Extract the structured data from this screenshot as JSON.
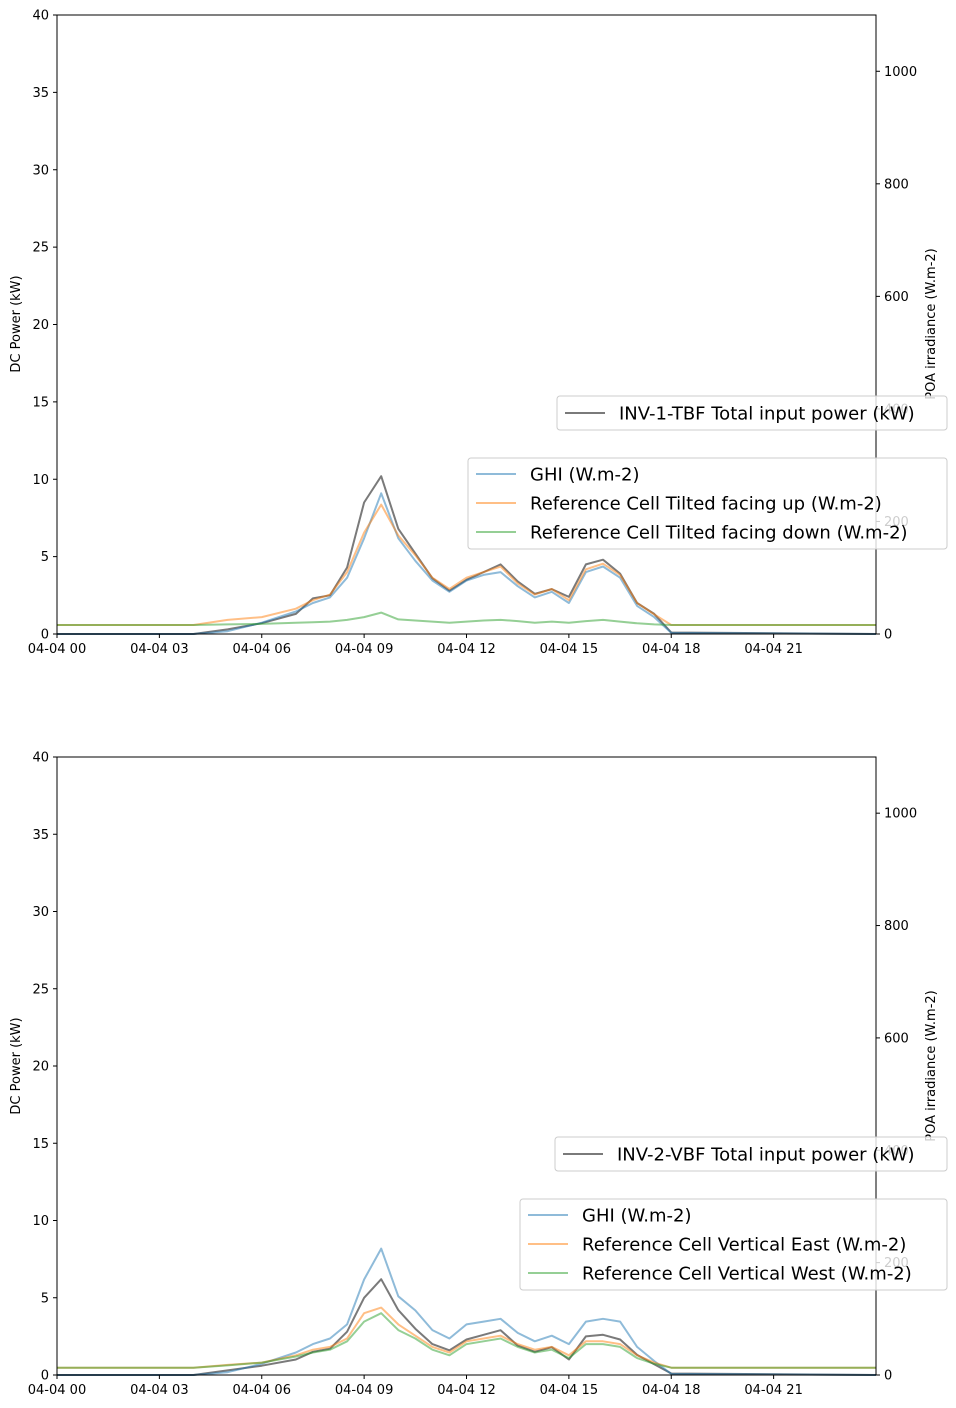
{
  "colors": {
    "power": "#4d4d4d",
    "ghi": "#1f77b4",
    "ref_up": "#ff7f0e",
    "ref_down": "#2ca02c",
    "axis": "#000000"
  },
  "chart_data": [
    {
      "type": "line",
      "x_tick_labels": [
        "04-04 00",
        "04-04 03",
        "04-04 06",
        "04-04 09",
        "04-04 12",
        "04-04 15",
        "04-04 18",
        "04-04 21"
      ],
      "x_tick_hours": [
        0,
        3,
        6,
        9,
        12,
        15,
        18,
        21
      ],
      "xlim_hours": [
        0,
        24
      ],
      "ylabel": "DC Power (kW)",
      "ylim": [
        0,
        40
      ],
      "y_ticks": [
        0,
        5,
        10,
        15,
        20,
        25,
        30,
        35,
        40
      ],
      "y2label": "POA irradiance (W.m-2)",
      "y2lim": [
        0,
        1100
      ],
      "y2_ticks": [
        0,
        200,
        400,
        600,
        800,
        1000
      ],
      "legend_power": "INV-1-TBF Total input power (kW)",
      "legend_irr": [
        "GHI (W.m-2)",
        "Reference Cell Tilted facing up (W.m-2)",
        "Reference Cell Tilted facing down (W.m-2)"
      ],
      "x_hours": [
        0,
        4,
        5,
        6,
        7,
        7.5,
        8,
        8.5,
        9,
        9.5,
        10,
        10.5,
        11,
        11.5,
        12,
        12.5,
        13,
        13.5,
        14,
        14.5,
        15,
        15.5,
        16,
        16.5,
        17,
        17.5,
        18,
        24
      ],
      "series": [
        {
          "name": "INV-1-TBF Total input power (kW)",
          "axis": "left",
          "color_key": "power",
          "values": [
            0,
            0,
            0.3,
            0.7,
            1.3,
            2.3,
            2.5,
            4.3,
            8.5,
            10.2,
            6.8,
            5.2,
            3.6,
            2.8,
            3.5,
            4.0,
            4.5,
            3.4,
            2.6,
            2.9,
            2.4,
            4.5,
            4.8,
            3.9,
            2.0,
            1.3,
            0.1,
            0
          ]
        },
        {
          "name": "GHI (W.m-2)",
          "axis": "right",
          "color_key": "ghi",
          "values": [
            0,
            0,
            5,
            20,
            40,
            55,
            65,
            100,
            170,
            250,
            170,
            130,
            95,
            75,
            95,
            105,
            110,
            85,
            65,
            75,
            55,
            110,
            120,
            100,
            50,
            30,
            2,
            0
          ]
        },
        {
          "name": "Reference Cell Tilted facing up (W.m-2)",
          "axis": "right",
          "color_key": "ref_up",
          "values": [
            16,
            16,
            25,
            30,
            45,
            60,
            70,
            110,
            180,
            230,
            175,
            140,
            100,
            80,
            100,
            110,
            120,
            90,
            70,
            80,
            60,
            115,
            125,
            105,
            55,
            35,
            16,
            16
          ]
        },
        {
          "name": "Reference Cell Tilted facing down (W.m-2)",
          "axis": "right",
          "color_key": "ref_down",
          "values": [
            16,
            16,
            17,
            18,
            20,
            21,
            22,
            25,
            30,
            38,
            26,
            24,
            22,
            20,
            22,
            24,
            25,
            23,
            20,
            22,
            20,
            23,
            25,
            22,
            19,
            17,
            16,
            16
          ]
        }
      ]
    },
    {
      "type": "line",
      "x_tick_labels": [
        "04-04 00",
        "04-04 03",
        "04-04 06",
        "04-04 09",
        "04-04 12",
        "04-04 15",
        "04-04 18",
        "04-04 21"
      ],
      "x_tick_hours": [
        0,
        3,
        6,
        9,
        12,
        15,
        18,
        21
      ],
      "xlim_hours": [
        0,
        24
      ],
      "ylabel": "DC Power (kW)",
      "ylim": [
        0,
        40
      ],
      "y_ticks": [
        0,
        5,
        10,
        15,
        20,
        25,
        30,
        35,
        40
      ],
      "y2label": "POA irradiance (W.m-2)",
      "y2lim": [
        0,
        1100
      ],
      "y2_ticks": [
        0,
        200,
        400,
        600,
        800,
        1000
      ],
      "legend_power": "INV-2-VBF Total input power (kW)",
      "legend_irr": [
        "GHI (W.m-2)",
        "Reference Cell Vertical East (W.m-2)",
        "Reference Cell Vertical West (W.m-2)"
      ],
      "x_hours": [
        0,
        4,
        5,
        6,
        7,
        7.5,
        8,
        8.5,
        9,
        9.5,
        10,
        10.5,
        11,
        11.5,
        12,
        12.5,
        13,
        13.5,
        14,
        14.5,
        15,
        15.5,
        16,
        16.5,
        17,
        17.5,
        18,
        24
      ],
      "series": [
        {
          "name": "INV-2-VBF Total input power (kW)",
          "axis": "left",
          "color_key": "power",
          "values": [
            0,
            0,
            0.3,
            0.6,
            1.0,
            1.5,
            1.7,
            2.8,
            5.0,
            6.2,
            4.2,
            3.0,
            2.0,
            1.6,
            2.3,
            2.6,
            2.9,
            1.9,
            1.5,
            1.8,
            1.0,
            2.5,
            2.6,
            2.3,
            1.3,
            0.7,
            0.1,
            0
          ]
        },
        {
          "name": "GHI (W.m-2)",
          "axis": "right",
          "color_key": "ghi",
          "values": [
            0,
            0,
            5,
            20,
            40,
            55,
            65,
            90,
            170,
            225,
            140,
            115,
            80,
            65,
            90,
            95,
            100,
            75,
            60,
            70,
            55,
            95,
            100,
            95,
            50,
            25,
            2,
            0
          ]
        },
        {
          "name": "Reference Cell Vertical East (W.m-2)",
          "axis": "right",
          "color_key": "ref_up",
          "values": [
            13,
            13,
            18,
            22,
            35,
            45,
            50,
            65,
            110,
            120,
            90,
            70,
            50,
            40,
            60,
            65,
            70,
            55,
            45,
            50,
            35,
            60,
            60,
            55,
            35,
            22,
            13,
            13
          ]
        },
        {
          "name": "Reference Cell Vertical West (W.m-2)",
          "axis": "right",
          "color_key": "ref_down",
          "values": [
            13,
            13,
            17,
            22,
            33,
            40,
            45,
            60,
            95,
            110,
            80,
            65,
            45,
            35,
            55,
            60,
            65,
            50,
            40,
            45,
            30,
            55,
            55,
            50,
            30,
            20,
            13,
            13
          ]
        }
      ]
    }
  ]
}
